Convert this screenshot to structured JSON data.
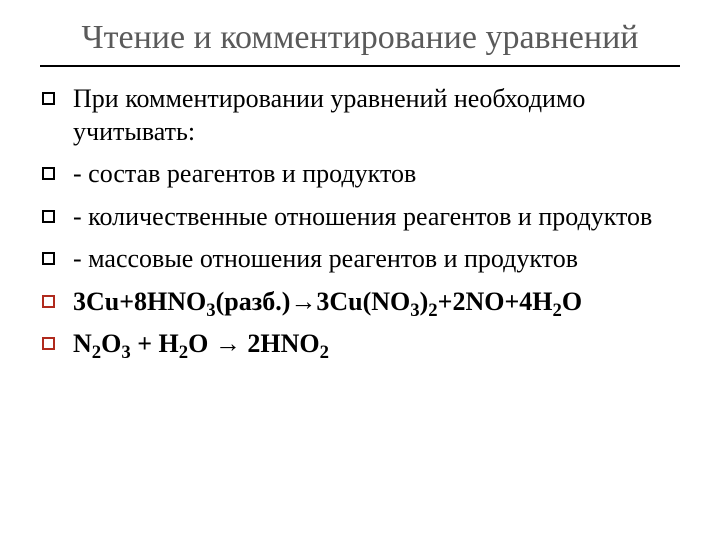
{
  "slide": {
    "title": "Чтение и комментирование уравнений",
    "title_color": "#5a5a5a",
    "title_fontsize": 34,
    "rule_color": "#000000",
    "body_fontsize": 26,
    "bullet_black": "#000000",
    "bullet_red": "#b02a1d",
    "background_color": "#ffffff",
    "items": [
      {
        "text": "При комментировании уравнений необходимо учитывать:",
        "bold": false,
        "marker": "black"
      },
      {
        "text": "- состав реагентов и продуктов",
        "bold": false,
        "marker": "black"
      },
      {
        "text": "- количественные отношения реагентов и продуктов",
        "bold": false,
        "marker": "black"
      },
      {
        "text": "- массовые отношения реагентов и продуктов",
        "bold": false,
        "marker": "black"
      },
      {
        "text": "3Cu+8HNO₃(разб.)→3Cu(NO₃)₂+2NO+4H₂O",
        "bold": true,
        "marker": "red",
        "html": "3Cu+8HNO<sub>3</sub>(разб.)→3Cu(NO<sub>3</sub>)<sub>2</sub>+2NO+4H<sub>2</sub>O"
      },
      {
        "text": "N₂O₃ + H₂O → 2HNO₂",
        "bold": true,
        "marker": "red",
        "html": "N<sub>2</sub>O<sub>3</sub> + H<sub>2</sub>O → 2HNO<sub>2</sub>"
      }
    ]
  }
}
